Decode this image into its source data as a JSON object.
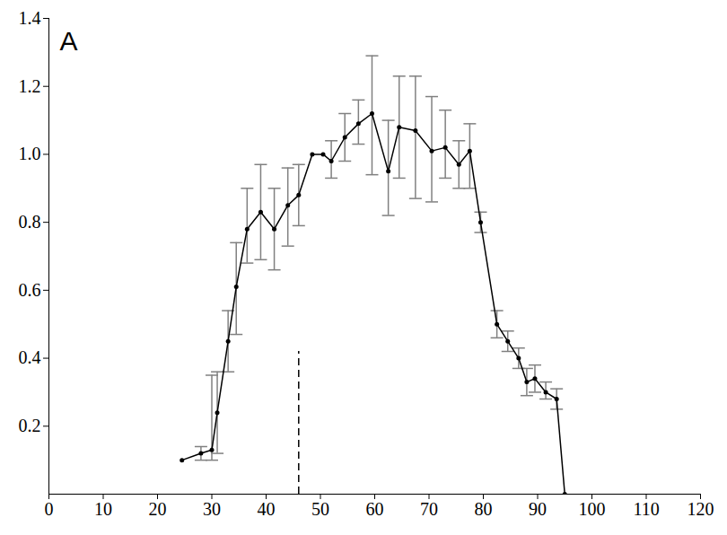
{
  "chart_data": {
    "type": "line",
    "panel_label": "A",
    "x": [
      24.5,
      28,
      30,
      31,
      33,
      34.5,
      36.5,
      39,
      41.5,
      44,
      46,
      48.5,
      50.5,
      52,
      54.5,
      57,
      59.5,
      62.5,
      64.5,
      67.5,
      70.5,
      73,
      75.5,
      77.5,
      79.5,
      82.5,
      84.5,
      86.5,
      88,
      89.5,
      91.5,
      93.5,
      95
    ],
    "series": [
      {
        "name": null,
        "color": "#000000",
        "marker": "circle",
        "line_style": "solid",
        "values": [
          0.1,
          0.12,
          0.13,
          0.24,
          0.45,
          0.61,
          0.78,
          0.83,
          0.78,
          0.85,
          0.88,
          1.0,
          1.0,
          0.98,
          1.05,
          1.09,
          1.12,
          0.95,
          1.08,
          1.07,
          1.01,
          1.02,
          0.97,
          1.01,
          0.8,
          0.5,
          0.45,
          0.4,
          0.33,
          0.34,
          0.3,
          0.28,
          0.0
        ],
        "error_low": [
          null,
          0.1,
          0.1,
          0.12,
          0.36,
          0.47,
          0.68,
          0.69,
          0.66,
          0.73,
          0.79,
          null,
          null,
          0.93,
          0.98,
          1.03,
          0.94,
          0.82,
          0.93,
          0.87,
          0.86,
          0.93,
          0.9,
          0.9,
          0.77,
          0.46,
          0.42,
          0.37,
          0.29,
          0.3,
          0.28,
          0.25,
          null
        ],
        "error_high": [
          null,
          0.14,
          0.35,
          0.36,
          0.54,
          0.74,
          0.9,
          0.97,
          0.9,
          0.96,
          0.97,
          null,
          null,
          1.04,
          1.12,
          1.16,
          1.29,
          1.1,
          1.23,
          1.23,
          1.17,
          1.13,
          1.04,
          1.09,
          0.83,
          0.54,
          0.48,
          0.43,
          0.37,
          0.38,
          0.33,
          0.31,
          null
        ],
        "error_color": "#808080"
      }
    ],
    "reference_line": {
      "x": 46,
      "y": [
        0,
        0.42
      ],
      "line_style": "dashed",
      "color": "#000000"
    },
    "xlim": [
      0,
      120
    ],
    "xticks": [
      0,
      10,
      20,
      30,
      40,
      50,
      60,
      70,
      80,
      90,
      100,
      110,
      120
    ],
    "ylim": [
      0,
      1.4
    ],
    "yticks": [
      0.2,
      0.4,
      0.6,
      0.8,
      {
        "value": 1,
        "label": "1.0"
      },
      1.2,
      1.4
    ],
    "grid": false
  }
}
